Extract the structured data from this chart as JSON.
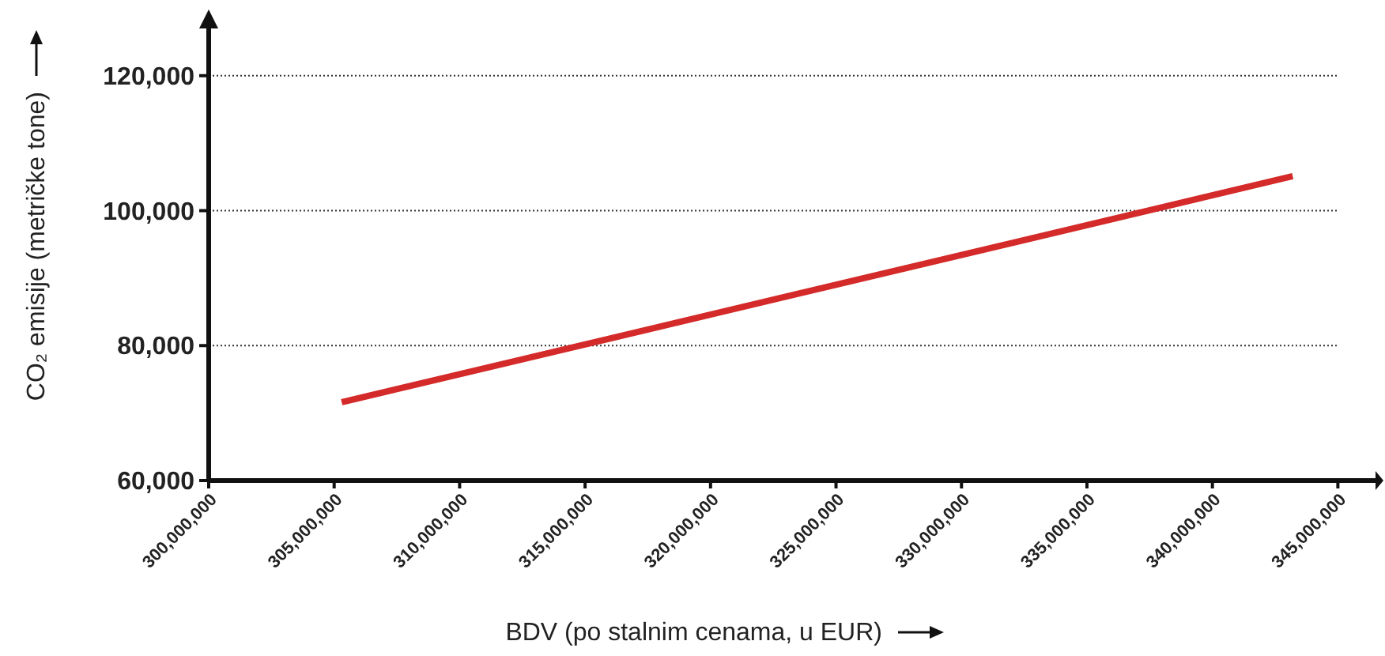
{
  "chart_data": {
    "type": "line",
    "xlabel": "BDV (po stalnim cenama, u EUR)",
    "ylabel": "CO₂ emisije (metričke tone)",
    "x": [
      305300000,
      343200000
    ],
    "series": [
      {
        "color": "#d42a2a",
        "values": [
          71600,
          105100
        ]
      }
    ],
    "xlim": [
      300000000,
      346500000
    ],
    "xticks": [
      {
        "value": 300000000,
        "label": "300,000,000"
      },
      {
        "value": 305000000,
        "label": "305,000,000"
      },
      {
        "value": 310000000,
        "label": "310,000,000"
      },
      {
        "value": 315000000,
        "label": "315,000,000"
      },
      {
        "value": 320000000,
        "label": "320,000,000"
      },
      {
        "value": 325000000,
        "label": "325,000,000"
      },
      {
        "value": 330000000,
        "label": "330,000,000"
      },
      {
        "value": 335000000,
        "label": "335,000,000"
      },
      {
        "value": 340000000,
        "label": "340,000,000"
      },
      {
        "value": 345000000,
        "label": "345,000,000"
      }
    ],
    "ylim": [
      60000,
      127000
    ],
    "yticks": [
      {
        "value": 60000,
        "label": "60,000"
      },
      {
        "value": 80000,
        "label": "80,000"
      },
      {
        "value": 100000,
        "label": "100,000"
      },
      {
        "value": 120000,
        "label": "120,000"
      }
    ],
    "grid": "y",
    "line_style": "solid"
  }
}
